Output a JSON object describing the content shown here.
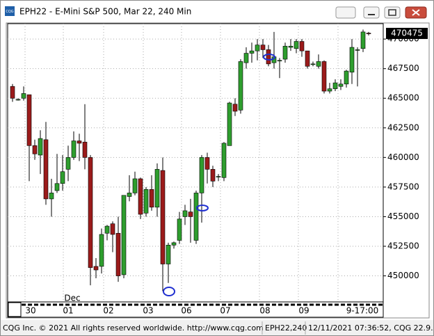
{
  "window": {
    "app_icon": "CQG",
    "title": "EPH22 - E-Mini S&P 500, Mar 22, 240 Min"
  },
  "status_bar": {
    "copyright": "CQG Inc. © 2021 All rights reserved worldwide. http://www.cqg.com",
    "symbol": "EPH22,240",
    "timestamp": "12/11/2021 07:36:52, CQG 22.9.8025"
  },
  "chart_data": {
    "type": "candlestick",
    "open": [
      466000,
      464900,
      465000,
      465300,
      461000,
      460200,
      461500,
      456500,
      457200,
      457800,
      459000,
      460000,
      461400,
      461300,
      460000,
      450800,
      450800,
      453600,
      454400,
      453600,
      450100,
      456700,
      457000,
      458200,
      455300,
      457300,
      455800,
      458900,
      451000,
      452600,
      453000,
      455000,
      455400,
      453000,
      457000,
      460000,
      459000,
      458400,
      458300,
      461000,
      464500,
      464000,
      468000,
      468800,
      469000,
      469500,
      469100,
      468000,
      468200,
      468300,
      469300,
      469200,
      469800,
      469000,
      467900,
      467700,
      468100,
      465600,
      465800,
      466000,
      466200,
      467200,
      469100,
      469200,
      470500
    ],
    "high": [
      466200,
      465000,
      466000,
      465300,
      461500,
      462300,
      463000,
      458200,
      460300,
      460200,
      461000,
      462200,
      462000,
      464500,
      460200,
      451500,
      454000,
      454300,
      454600,
      455000,
      456800,
      458500,
      458800,
      458300,
      457500,
      458500,
      459500,
      460000,
      452800,
      452900,
      455400,
      456000,
      456500,
      457200,
      460200,
      460400,
      459300,
      458600,
      461300,
      464700,
      465000,
      468300,
      469300,
      469700,
      470000,
      470000,
      469500,
      470600,
      468400,
      469700,
      470000,
      470000,
      470000,
      469000,
      468100,
      468700,
      468200,
      466300,
      466600,
      466600,
      467400,
      470000,
      469300,
      470800,
      470600
    ],
    "low": [
      464700,
      464800,
      464800,
      458000,
      459800,
      458600,
      456000,
      455000,
      457000,
      457200,
      458000,
      459800,
      459700,
      459000,
      449200,
      449800,
      450200,
      453000,
      452000,
      449500,
      449800,
      456300,
      456800,
      454800,
      455000,
      455500,
      455000,
      448700,
      449400,
      452300,
      452700,
      454300,
      452800,
      452700,
      454500,
      457800,
      457500,
      458000,
      458000,
      461000,
      463500,
      463700,
      467500,
      468000,
      468200,
      468400,
      467700,
      467500,
      466700,
      468000,
      469000,
      468800,
      468500,
      467500,
      467700,
      467500,
      465400,
      465400,
      465600,
      465700,
      465900,
      466200,
      466000,
      468900,
      470300
    ],
    "close": [
      465000,
      464900,
      465400,
      461000,
      460300,
      461600,
      456500,
      457000,
      457800,
      458800,
      460000,
      461400,
      461200,
      460000,
      450700,
      450500,
      453500,
      454200,
      453500,
      450000,
      456800,
      457000,
      458200,
      455200,
      457300,
      455800,
      459000,
      451000,
      452600,
      452800,
      454800,
      455500,
      455000,
      457000,
      460000,
      459000,
      458000,
      458400,
      461200,
      464600,
      463900,
      468100,
      468800,
      469000,
      469500,
      469100,
      467900,
      468500,
      468200,
      469400,
      469400,
      469800,
      469000,
      467700,
      467900,
      468100,
      465600,
      465800,
      466300,
      466200,
      467300,
      469300,
      469100,
      470600,
      470475
    ],
    "up_color": "#2e9e2e",
    "down_color": "#9b1b1b",
    "ylim": [
      447800,
      471300
    ],
    "yticks": [
      450000,
      452500,
      455000,
      457500,
      460000,
      462500,
      465000,
      467500,
      470000
    ],
    "last_price": 470475,
    "x_labels": [
      "30",
      "01",
      "02",
      "03",
      "06",
      "07",
      "08",
      "09",
      "9-17:00"
    ],
    "month_label": "Dec",
    "grid": true
  }
}
